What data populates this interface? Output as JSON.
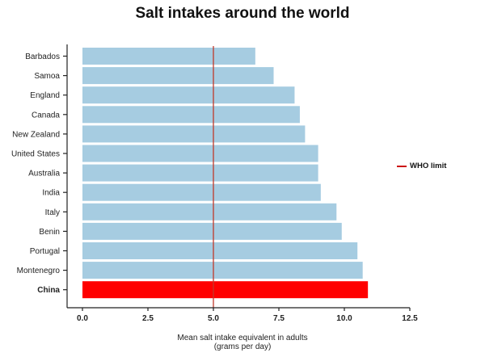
{
  "chart_data": {
    "type": "bar",
    "orientation": "horizontal",
    "title": "Salt intakes around the world",
    "xlabel": "Mean salt intake equivalent in adults",
    "xlabel_line2": "(grams per day)",
    "ylabel": "",
    "xlim": [
      0,
      12.5
    ],
    "xticks": [
      "0.0",
      "2.5",
      "5.0",
      "7.5",
      "10.0",
      "12.5"
    ],
    "grid": false,
    "categories": [
      "Barbados",
      "Samoa",
      "England",
      "Canada",
      "New Zealand",
      "United States",
      "Australia",
      "India",
      "Italy",
      "Benin",
      "Portugal",
      "Montenegro",
      "China"
    ],
    "values": [
      6.6,
      7.3,
      8.1,
      8.3,
      8.5,
      9.0,
      9.0,
      9.1,
      9.7,
      9.9,
      10.5,
      10.7,
      10.9
    ],
    "highlight": "China",
    "colors": {
      "default": "#a6cce1",
      "highlight": "#ff0000",
      "reference_line": "#c0392b"
    },
    "reference_line": {
      "value": 5.0,
      "label": "WHO limit"
    },
    "legend": {
      "position": "right",
      "entries": [
        "WHO limit"
      ]
    }
  }
}
